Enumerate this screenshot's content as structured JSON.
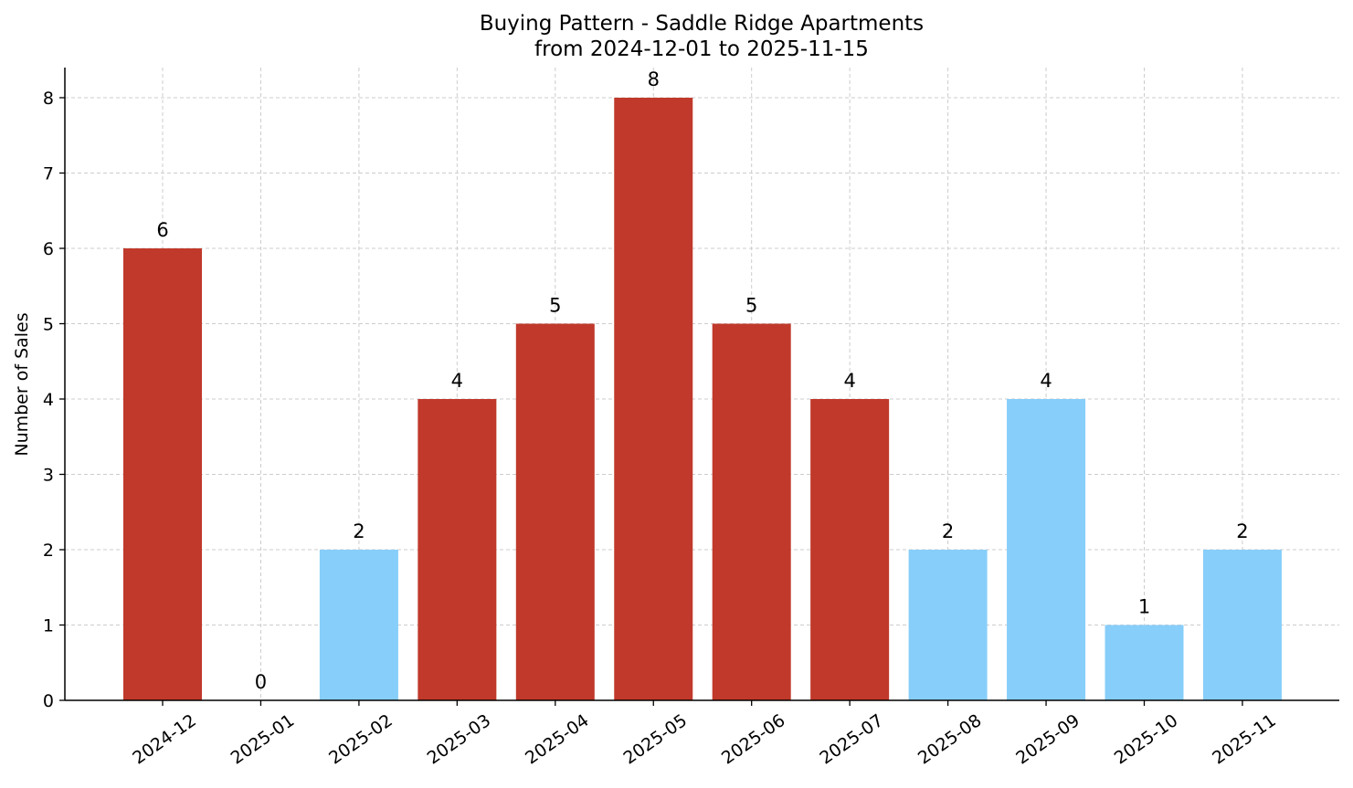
{
  "chart_data": {
    "type": "bar",
    "title": "Buying Pattern - Saddle Ridge Apartments",
    "subtitle": "from 2024-12-01 to 2025-11-15",
    "xlabel": "",
    "ylabel": "Number of Sales",
    "categories": [
      "2024-12",
      "2025-01",
      "2025-02",
      "2025-03",
      "2025-04",
      "2025-05",
      "2025-06",
      "2025-07",
      "2025-08",
      "2025-09",
      "2025-10",
      "2025-11"
    ],
    "values": [
      6,
      0,
      2,
      4,
      5,
      8,
      5,
      4,
      2,
      4,
      1,
      2
    ],
    "bar_colors": [
      "#c0392b",
      "#c0392b",
      "#87cefa",
      "#c0392b",
      "#c0392b",
      "#c0392b",
      "#c0392b",
      "#c0392b",
      "#87cefa",
      "#87cefa",
      "#87cefa",
      "#87cefa"
    ],
    "yticks": [
      0,
      1,
      2,
      3,
      4,
      5,
      6,
      7,
      8
    ],
    "ylim": [
      0,
      8.4
    ],
    "grid": true,
    "data_labels": true
  }
}
